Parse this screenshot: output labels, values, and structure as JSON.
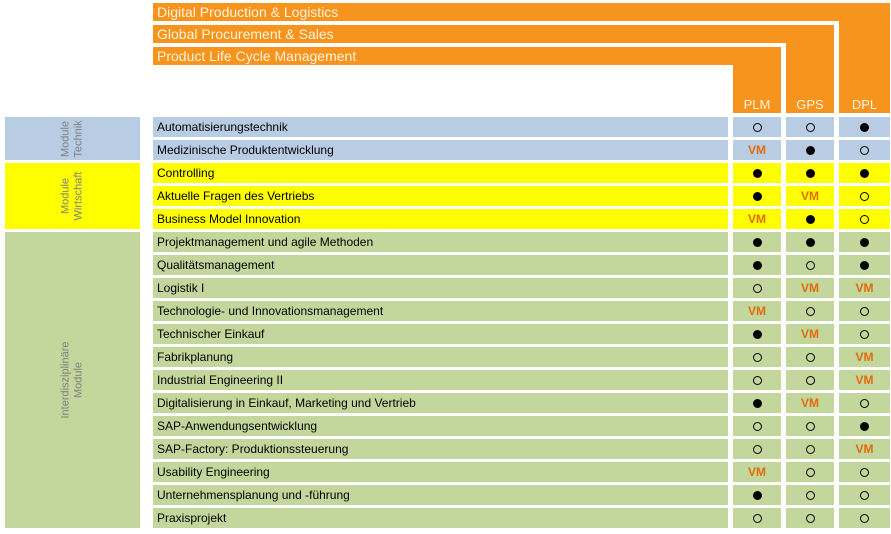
{
  "title_bars": [
    {
      "label": "Digital Production & Logistics",
      "target_column": "DPL"
    },
    {
      "label": "Global Procurement & Sales",
      "target_column": "GPS"
    },
    {
      "label": "Product Life Cycle Management",
      "target_column": "PLM"
    }
  ],
  "columns": [
    "PLM",
    "GPS",
    "DPL"
  ],
  "cell_symbols": {
    "filled": "●",
    "open": "○",
    "vm": "VM"
  },
  "colors": {
    "orange": "#F7941D",
    "bar_text": "#FCF3DE",
    "blue": "#B8CCE4",
    "yellow": "#FFFF00",
    "green": "#C3D69B",
    "vm_text": "#E36C09",
    "module_text": "#000000",
    "group_label_text": "#808080"
  },
  "groups": [
    {
      "label_lines": [
        "Module",
        "Technik"
      ],
      "color_key": "blue",
      "modules": [
        {
          "name": "Automatisierungstechnik",
          "cells": [
            "open",
            "open",
            "filled"
          ]
        },
        {
          "name": "Medizinische Produktentwicklung",
          "cells": [
            "vm",
            "filled",
            "open"
          ]
        }
      ]
    },
    {
      "label_lines": [
        "Module",
        "Wirtschaft"
      ],
      "color_key": "yellow",
      "modules": [
        {
          "name": "Controlling",
          "cells": [
            "filled",
            "filled",
            "filled"
          ]
        },
        {
          "name": "Aktuelle Fragen des Vertriebs",
          "cells": [
            "filled",
            "vm",
            "open"
          ]
        },
        {
          "name": "Business Model Innovation",
          "cells": [
            "vm",
            "filled",
            "open"
          ]
        }
      ]
    },
    {
      "label_lines": [
        "Interdisziplinäre",
        "Module"
      ],
      "color_key": "green",
      "modules": [
        {
          "name": "Projektmanagement und agile Methoden",
          "cells": [
            "filled",
            "filled",
            "filled"
          ]
        },
        {
          "name": "Qualitätsmanagement",
          "cells": [
            "filled",
            "open",
            "filled"
          ]
        },
        {
          "name": "Logistik I",
          "cells": [
            "open",
            "vm",
            "vm"
          ]
        },
        {
          "name": "Technologie- und Innovationsmanagement",
          "cells": [
            "vm",
            "open",
            "open"
          ]
        },
        {
          "name": "Technischer Einkauf",
          "cells": [
            "filled",
            "vm",
            "open"
          ]
        },
        {
          "name": "Fabrikplanung",
          "cells": [
            "open",
            "open",
            "vm"
          ]
        },
        {
          "name": "Industrial Engineering II",
          "cells": [
            "open",
            "open",
            "vm"
          ]
        },
        {
          "name": "Digitalisierung in Einkauf, Marketing und Vertrieb",
          "cells": [
            "filled",
            "vm",
            "open"
          ]
        },
        {
          "name": "SAP-Anwendungsentwicklung",
          "cells": [
            "open",
            "open",
            "filled"
          ]
        },
        {
          "name": "SAP-Factory: Produktionssteuerung",
          "cells": [
            "open",
            "open",
            "vm"
          ]
        },
        {
          "name": "Usability Engineering",
          "cells": [
            "vm",
            "open",
            "open"
          ]
        },
        {
          "name": "Unternehmensplanung und -führung",
          "cells": [
            "filled",
            "open",
            "open"
          ]
        },
        {
          "name": "Praxisprojekt",
          "cells": [
            "open",
            "open",
            "open"
          ]
        }
      ]
    }
  ]
}
